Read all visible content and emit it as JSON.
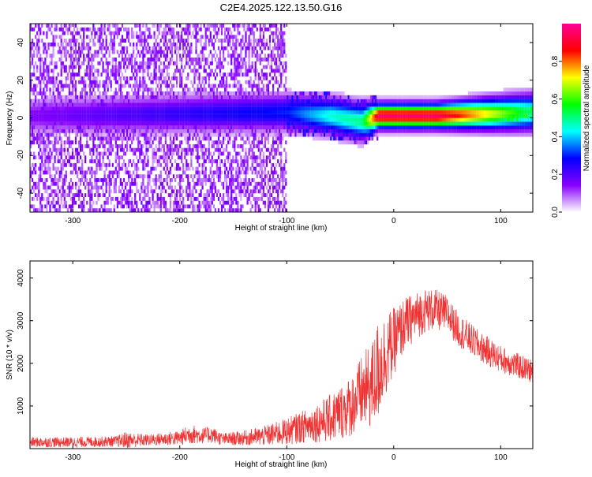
{
  "title": "C2E4.2025.122.13.50.G16",
  "colors": {
    "snr_line": "#f03232",
    "background": "#ffffff"
  },
  "chart_data": [
    {
      "type": "heatmap",
      "title": "C2E4.2025.122.13.50.G16",
      "xlabel": "Height of straight line (km)",
      "ylabel": "Frequency (Hz)",
      "xlim": [
        -340,
        130
      ],
      "ylim": [
        -50,
        50
      ],
      "xticks": [
        -300,
        -200,
        -100,
        0,
        100
      ],
      "yticks": [
        -40,
        -20,
        0,
        20,
        40
      ],
      "colorbar": {
        "label": "Normalized spectral amplitude",
        "range": [
          0,
          1
        ],
        "ticks": [
          "0.0",
          "0.2",
          "0.4",
          "0.6",
          "0.8"
        ],
        "colormap": [
          "#ffffff",
          "#8800ff",
          "#0000ff",
          "#00ffff",
          "#00ff00",
          "#ffff00",
          "#ff0000",
          "#ff0099"
        ]
      },
      "ridge": [
        {
          "x": -340,
          "center": 0,
          "half_width": 3,
          "amp": 0.15
        },
        {
          "x": -100,
          "center": 2,
          "half_width": 3,
          "amp": 0.3
        },
        {
          "x": -60,
          "center": 0,
          "half_width": 3,
          "amp": 0.45
        },
        {
          "x": -30,
          "center": -3,
          "half_width": 3,
          "amp": 0.5
        },
        {
          "x": -15,
          "center": 0,
          "half_width": 2,
          "amp": 0.95
        },
        {
          "x": 40,
          "center": 0,
          "half_width": 2,
          "amp": 0.95
        },
        {
          "x": 130,
          "center": 2,
          "half_width": 3,
          "amp": 0.5
        }
      ]
    },
    {
      "type": "line",
      "xlabel": "Height of straight line (km)",
      "ylabel": "SNR (10 * v/v)",
      "xlim": [
        -340,
        130
      ],
      "ylim": [
        0,
        4400
      ],
      "xticks": [
        -300,
        -200,
        -100,
        0,
        100
      ],
      "yticks": [
        1000,
        2000,
        3000,
        4000
      ],
      "series": [
        {
          "x": [
            -340,
            -300,
            -260,
            -250,
            -230,
            -200,
            -190,
            -180,
            -170,
            -160,
            -140,
            -120,
            -100,
            -80,
            -60,
            -40,
            -30,
            -20,
            -15,
            -10,
            0,
            10,
            20,
            30,
            40,
            50,
            60,
            80,
            100,
            130
          ],
          "y": [
            150,
            150,
            170,
            200,
            200,
            250,
            350,
            300,
            330,
            220,
            250,
            300,
            400,
            550,
            700,
            1000,
            1300,
            1500,
            1800,
            2100,
            2500,
            2900,
            3100,
            3250,
            3250,
            3150,
            2800,
            2400,
            2100,
            1800
          ],
          "spread": [
            150,
            150,
            160,
            250,
            170,
            220,
            300,
            230,
            250,
            180,
            220,
            300,
            400,
            500,
            700,
            900,
            1100,
            1300,
            1500,
            1300,
            1000,
            800,
            700,
            650,
            600,
            550,
            500,
            450,
            400,
            350
          ]
        }
      ]
    }
  ]
}
